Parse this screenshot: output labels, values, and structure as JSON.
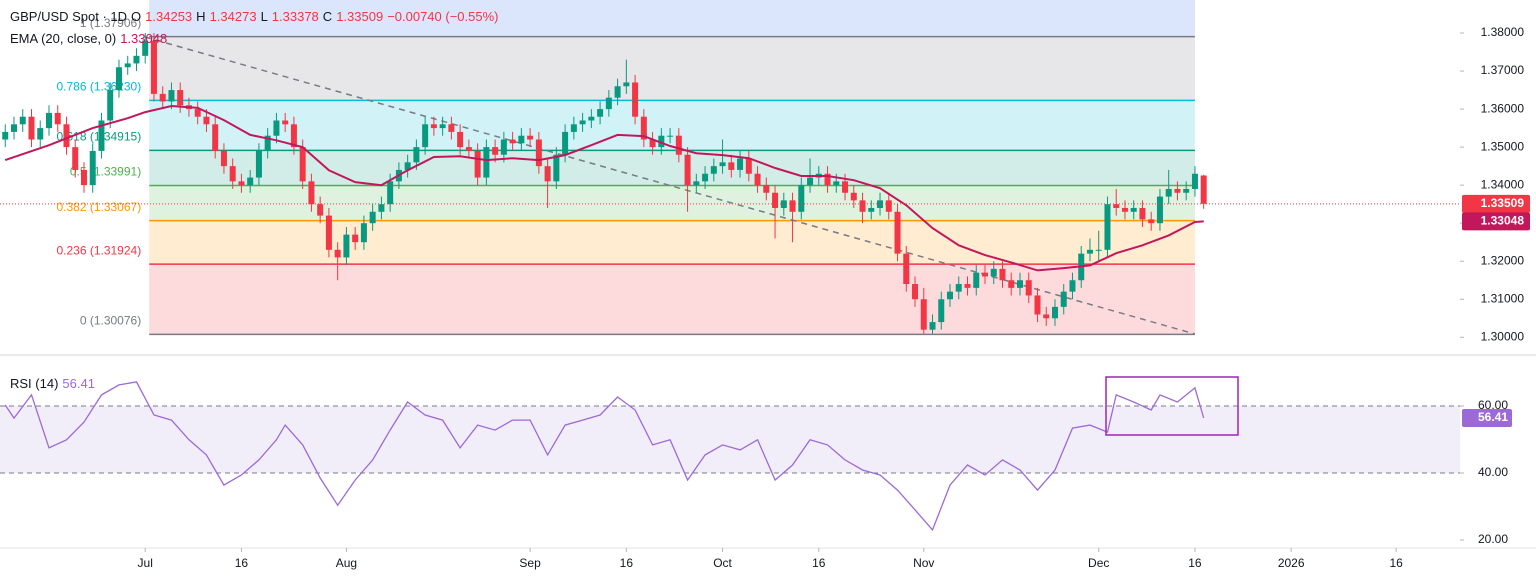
{
  "chart_data": [
    {
      "type": "candlestick",
      "title": "GBP/USD Spot · 1D",
      "ohlc_labels": [
        "O",
        "H",
        "L",
        "C"
      ],
      "change": "−0.00740 (−0.55%)",
      "up_color": "#089981",
      "down_color": "#f23645",
      "xlim": [
        -0.6,
        166.3
      ],
      "xticks": [
        {
          "value": 16,
          "label": "Jul"
        },
        {
          "value": 27,
          "label": "16"
        },
        {
          "value": 39,
          "label": "Aug"
        },
        {
          "value": 60,
          "label": "Sep"
        },
        {
          "value": 71,
          "label": "16"
        },
        {
          "value": 82,
          "label": "Oct"
        },
        {
          "value": 93,
          "label": "16"
        },
        {
          "value": 105,
          "label": "Nov"
        },
        {
          "value": 125,
          "label": "Dec"
        },
        {
          "value": 136,
          "label": "16"
        },
        {
          "value": 147,
          "label": "2026"
        },
        {
          "value": 159,
          "label": "16"
        }
      ],
      "ylim": [
        1.29666,
        1.38868
      ],
      "yticks": [
        {
          "value": 1.3,
          "label": "1.30000"
        },
        {
          "value": 1.31,
          "label": "1.31000"
        },
        {
          "value": 1.32,
          "label": "1.32000"
        },
        {
          "value": 1.33,
          "label": "1.33000"
        },
        {
          "value": 1.34,
          "label": "1.34000"
        },
        {
          "value": 1.35,
          "label": "1.35000"
        },
        {
          "value": 1.36,
          "label": "1.36000"
        },
        {
          "value": 1.37,
          "label": "1.37000"
        },
        {
          "value": 1.38,
          "label": "1.38000"
        }
      ],
      "open": [
        1.352,
        1.354,
        1.356,
        1.358,
        1.352,
        1.355,
        1.359,
        1.356,
        1.35,
        1.344,
        1.34,
        1.349,
        1.357,
        1.365,
        1.371,
        1.372,
        1.374,
        1.378,
        1.364,
        1.362,
        1.365,
        1.361,
        1.36,
        1.358,
        1.356,
        1.349,
        1.345,
        1.341,
        1.34,
        1.342,
        1.349,
        1.353,
        1.357,
        1.356,
        1.35,
        1.341,
        1.335,
        1.332,
        1.323,
        1.321,
        1.327,
        1.325,
        1.33,
        1.333,
        1.335,
        1.341,
        1.344,
        1.346,
        1.35,
        1.356,
        1.355,
        1.356,
        1.354,
        1.35,
        1.349,
        1.342,
        1.35,
        1.348,
        1.352,
        1.351,
        1.353,
        1.352,
        1.345,
        1.341,
        1.348,
        1.354,
        1.356,
        1.357,
        1.358,
        1.36,
        1.363,
        1.366,
        1.367,
        1.358,
        1.352,
        1.35,
        1.353,
        1.353,
        1.348,
        1.34,
        1.341,
        1.343,
        1.345,
        1.346,
        1.344,
        1.347,
        1.343,
        1.34,
        1.338,
        1.334,
        1.336,
        1.333,
        1.34,
        1.342,
        1.343,
        1.34,
        1.341,
        1.338,
        1.336,
        1.333,
        1.334,
        1.336,
        1.333,
        1.322,
        1.314,
        1.31,
        1.302,
        1.304,
        1.31,
        1.312,
        1.314,
        1.313,
        1.317,
        1.316,
        1.318,
        1.315,
        1.313,
        1.315,
        1.311,
        1.306,
        1.305,
        1.308,
        1.312,
        1.315,
        1.322,
        1.323,
        1.323,
        1.335,
        1.334,
        1.333,
        1.334,
        1.331,
        1.33,
        1.337,
        1.339,
        1.338,
        1.339,
        1.34253
      ],
      "high": [
        1.356,
        1.358,
        1.36,
        1.36,
        1.357,
        1.361,
        1.361,
        1.358,
        1.352,
        1.346,
        1.351,
        1.359,
        1.367,
        1.373,
        1.374,
        1.376,
        1.38,
        1.38,
        1.366,
        1.367,
        1.367,
        1.363,
        1.362,
        1.36,
        1.358,
        1.351,
        1.347,
        1.343,
        1.344,
        1.351,
        1.355,
        1.359,
        1.359,
        1.358,
        1.352,
        1.343,
        1.337,
        1.334,
        1.325,
        1.329,
        1.329,
        1.332,
        1.335,
        1.337,
        1.343,
        1.346,
        1.348,
        1.352,
        1.358,
        1.358,
        1.358,
        1.358,
        1.356,
        1.352,
        1.351,
        1.352,
        1.352,
        1.354,
        1.354,
        1.355,
        1.355,
        1.354,
        1.347,
        1.35,
        1.356,
        1.358,
        1.359,
        1.36,
        1.362,
        1.365,
        1.368,
        1.373,
        1.369,
        1.36,
        1.354,
        1.355,
        1.355,
        1.355,
        1.35,
        1.343,
        1.345,
        1.347,
        1.352,
        1.348,
        1.349,
        1.349,
        1.345,
        1.342,
        1.34,
        1.338,
        1.338,
        1.342,
        1.347,
        1.345,
        1.345,
        1.343,
        1.343,
        1.34,
        1.338,
        1.336,
        1.338,
        1.338,
        1.335,
        1.324,
        1.316,
        1.313,
        1.306,
        1.312,
        1.314,
        1.316,
        1.316,
        1.319,
        1.319,
        1.32,
        1.32,
        1.317,
        1.317,
        1.317,
        1.313,
        1.308,
        1.31,
        1.314,
        1.317,
        1.324,
        1.326,
        1.328,
        1.337,
        1.339,
        1.336,
        1.336,
        1.336,
        1.333,
        1.339,
        1.344,
        1.341,
        1.341,
        1.345,
        1.34273
      ],
      "low": [
        1.35,
        1.352,
        1.354,
        1.35,
        1.35,
        1.353,
        1.354,
        1.348,
        1.342,
        1.338,
        1.338,
        1.347,
        1.355,
        1.363,
        1.369,
        1.37,
        1.372,
        1.362,
        1.36,
        1.36,
        1.359,
        1.358,
        1.356,
        1.354,
        1.347,
        1.343,
        1.339,
        1.338,
        1.338,
        1.34,
        1.347,
        1.351,
        1.354,
        1.348,
        1.339,
        1.333,
        1.33,
        1.321,
        1.315,
        1.319,
        1.323,
        1.323,
        1.328,
        1.331,
        1.333,
        1.339,
        1.342,
        1.344,
        1.348,
        1.353,
        1.353,
        1.352,
        1.348,
        1.347,
        1.34,
        1.34,
        1.346,
        1.346,
        1.349,
        1.349,
        1.35,
        1.343,
        1.334,
        1.339,
        1.346,
        1.352,
        1.354,
        1.355,
        1.356,
        1.358,
        1.361,
        1.364,
        1.356,
        1.35,
        1.348,
        1.348,
        1.351,
        1.346,
        1.333,
        1.338,
        1.339,
        1.341,
        1.343,
        1.342,
        1.342,
        1.341,
        1.338,
        1.336,
        1.326,
        1.332,
        1.325,
        1.331,
        1.338,
        1.34,
        1.338,
        1.338,
        1.336,
        1.334,
        1.33,
        1.331,
        1.332,
        1.331,
        1.32,
        1.312,
        1.308,
        1.301,
        1.301,
        1.302,
        1.308,
        1.31,
        1.311,
        1.311,
        1.314,
        1.314,
        1.313,
        1.311,
        1.311,
        1.309,
        1.304,
        1.303,
        1.303,
        1.306,
        1.31,
        1.313,
        1.32,
        1.32,
        1.321,
        1.332,
        1.331,
        1.331,
        1.329,
        1.328,
        1.328,
        1.335,
        1.336,
        1.336,
        1.337,
        1.33378
      ],
      "close": [
        1.354,
        1.356,
        1.358,
        1.352,
        1.355,
        1.359,
        1.356,
        1.35,
        1.344,
        1.34,
        1.349,
        1.357,
        1.365,
        1.371,
        1.372,
        1.374,
        1.378,
        1.364,
        1.362,
        1.365,
        1.361,
        1.36,
        1.358,
        1.356,
        1.349,
        1.345,
        1.341,
        1.34,
        1.342,
        1.349,
        1.353,
        1.357,
        1.356,
        1.35,
        1.341,
        1.335,
        1.332,
        1.323,
        1.321,
        1.327,
        1.325,
        1.33,
        1.333,
        1.335,
        1.341,
        1.344,
        1.346,
        1.35,
        1.356,
        1.355,
        1.356,
        1.354,
        1.35,
        1.349,
        1.342,
        1.35,
        1.348,
        1.352,
        1.351,
        1.353,
        1.352,
        1.345,
        1.341,
        1.348,
        1.354,
        1.356,
        1.357,
        1.358,
        1.36,
        1.363,
        1.366,
        1.367,
        1.358,
        1.352,
        1.35,
        1.353,
        1.353,
        1.348,
        1.34,
        1.341,
        1.343,
        1.345,
        1.346,
        1.344,
        1.347,
        1.343,
        1.34,
        1.338,
        1.334,
        1.336,
        1.333,
        1.34,
        1.342,
        1.343,
        1.34,
        1.341,
        1.338,
        1.336,
        1.333,
        1.334,
        1.336,
        1.333,
        1.322,
        1.314,
        1.31,
        1.302,
        1.304,
        1.31,
        1.312,
        1.314,
        1.313,
        1.317,
        1.316,
        1.318,
        1.315,
        1.313,
        1.315,
        1.311,
        1.306,
        1.305,
        1.308,
        1.312,
        1.315,
        1.322,
        1.323,
        1.323,
        1.335,
        1.334,
        1.333,
        1.334,
        1.331,
        1.33,
        1.337,
        1.339,
        1.338,
        1.339,
        1.343,
        1.33509
      ],
      "ema": {
        "name": "EMA (20, close, 0)",
        "color": "#c2185b",
        "x": [
          0,
          5,
          10,
          14,
          16,
          19,
          22,
          25,
          28,
          31,
          34,
          37,
          40,
          43,
          46,
          49,
          52,
          55,
          58,
          61,
          64,
          67,
          70,
          73,
          76,
          79,
          82,
          85,
          88,
          91,
          94,
          97,
          100,
          103,
          106,
          109,
          112,
          115,
          118,
          121,
          124,
          127,
          130,
          133,
          136,
          137
        ],
        "values": [
          1.3466,
          1.3505,
          1.355,
          1.3576,
          1.3592,
          1.3608,
          1.3603,
          1.3571,
          1.3532,
          1.3518,
          1.35,
          1.3439,
          1.3408,
          1.34,
          1.3439,
          1.3474,
          1.3476,
          1.3466,
          1.3471,
          1.3466,
          1.3479,
          1.3505,
          1.3532,
          1.3529,
          1.3503,
          1.3484,
          1.3479,
          1.3471,
          1.3445,
          1.3424,
          1.3424,
          1.3413,
          1.3392,
          1.3347,
          1.3287,
          1.3242,
          1.3216,
          1.3197,
          1.3176,
          1.3182,
          1.3189,
          1.3221,
          1.3242,
          1.3268,
          1.3303,
          1.33048
        ]
      },
      "fib_levels": [
        {
          "label": "0 (1.30076)",
          "value": 1.30076,
          "color": "#787b86"
        },
        {
          "label": "0.236 (1.31924)",
          "value": 1.31924,
          "color": "#f23645"
        },
        {
          "label": "0.382 (1.33067)",
          "value": 1.33067,
          "color": "#ff9800"
        },
        {
          "label": "0.5 (1.33991)",
          "value": 1.33991,
          "color": "#4caf50"
        },
        {
          "label": "0.618 (1.34915)",
          "value": 1.34915,
          "color": "#089981"
        },
        {
          "label": "0.786 (1.36230)",
          "value": 1.3623,
          "color": "#00bcd4"
        },
        {
          "label": "1 (1.37906)",
          "value": 1.37906,
          "color": "#787b86"
        }
      ]
    },
    {
      "type": "line",
      "title": "RSI (14)",
      "color": "#9c6ad6",
      "xlim": [
        -0.6,
        166.3
      ],
      "ylim": [
        17.61,
        73.73
      ],
      "yticks": [
        {
          "value": 20,
          "label": "20.00"
        },
        {
          "value": 40,
          "label": "40.00"
        },
        {
          "value": 60,
          "label": "60.00"
        }
      ],
      "band": [
        40,
        60
      ],
      "x": [
        0,
        1,
        3,
        5,
        7,
        9,
        11,
        13,
        15,
        17,
        19,
        21,
        23,
        25,
        27,
        29,
        31,
        32,
        34,
        36,
        38,
        40,
        42,
        44,
        46,
        48,
        50,
        52,
        54,
        56,
        58,
        60,
        62,
        64,
        66,
        68,
        70,
        72,
        74,
        76,
        78,
        80,
        82,
        84,
        86,
        88,
        90,
        92,
        94,
        96,
        98,
        100,
        102,
        104,
        106,
        108,
        110,
        112,
        114,
        116,
        118,
        120,
        122,
        124,
        126,
        127,
        129,
        131,
        132,
        134,
        136,
        137
      ],
      "values": [
        60.3,
        56.4,
        63.3,
        47.5,
        49.9,
        55.2,
        63.3,
        66.3,
        67.2,
        57.3,
        55.8,
        49.9,
        45.4,
        36.4,
        39.4,
        43.9,
        49.9,
        54.3,
        48.4,
        38.5,
        30.4,
        37.9,
        43.9,
        52.8,
        61.2,
        57.3,
        55.8,
        47.5,
        54.3,
        52.8,
        55.8,
        55.8,
        45.4,
        54.3,
        55.8,
        57.3,
        62.7,
        58.8,
        48.4,
        49.9,
        37.9,
        45.4,
        48.4,
        46.9,
        49.9,
        37.9,
        42.4,
        49.9,
        48.4,
        43.9,
        40.9,
        39.4,
        34.9,
        29.0,
        23.0,
        36.4,
        42.4,
        39.4,
        43.9,
        40.9,
        34.9,
        40.9,
        53.4,
        54.3,
        52.2,
        63.3,
        61.2,
        58.8,
        63.3,
        61.2,
        65.4,
        56.41
      ]
    }
  ]
}
